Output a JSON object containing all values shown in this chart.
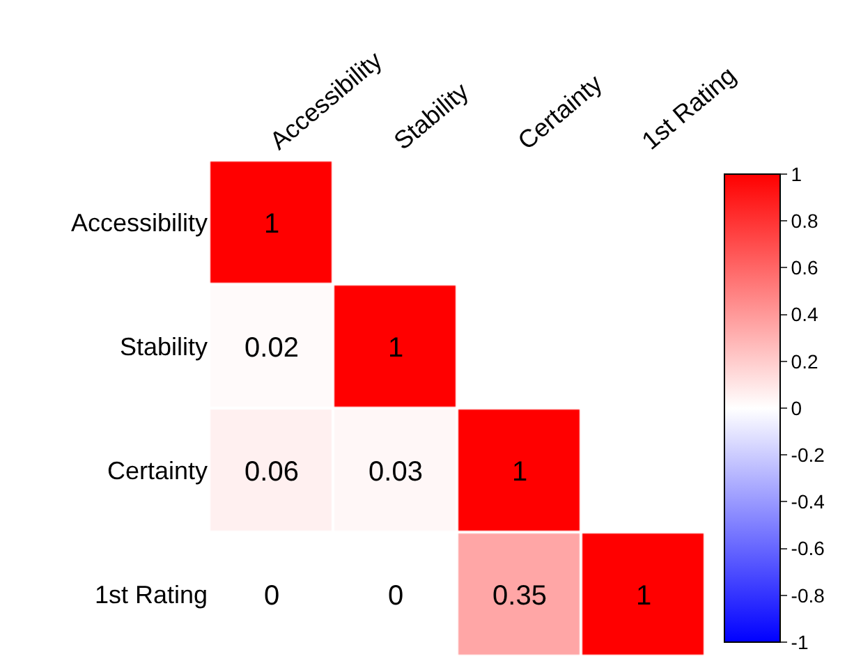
{
  "chart_data": {
    "type": "heatmap",
    "categories": [
      "Accessibility",
      "Stability",
      "Certainty",
      "1st Rating"
    ],
    "y_categories": [
      "Accessibility",
      "Stability",
      "Certainty",
      "1st Rating"
    ],
    "cells": [
      [
        1,
        null,
        null,
        null
      ],
      [
        0.02,
        1,
        null,
        null
      ],
      [
        0.06,
        0.03,
        1,
        null
      ],
      [
        0,
        0,
        0.35,
        1
      ]
    ],
    "data_labels": true,
    "clim": [
      -1,
      1
    ],
    "cticks": [
      1,
      0.8,
      0.6,
      0.4,
      0.2,
      0,
      -0.2,
      -0.4,
      -0.6,
      -0.8,
      -1
    ]
  }
}
